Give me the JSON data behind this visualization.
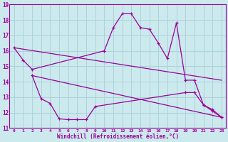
{
  "background_color": "#cce9ed",
  "grid_color": "#aad4d9",
  "line_color": "#990099",
  "spine_color": "#990099",
  "xlim": [
    -0.5,
    23.5
  ],
  "ylim": [
    11,
    19
  ],
  "xlabel": "Windchill (Refroidissement éolien,°C)",
  "yticks": [
    11,
    12,
    13,
    14,
    15,
    16,
    17,
    18,
    19
  ],
  "xticks": [
    0,
    1,
    2,
    3,
    4,
    5,
    6,
    7,
    8,
    9,
    10,
    11,
    12,
    13,
    14,
    15,
    16,
    17,
    18,
    19,
    20,
    21,
    22,
    23
  ],
  "xticklabels": [
    "0",
    "1",
    "2",
    "3",
    "4",
    "5",
    "6",
    "7",
    "8",
    "9",
    "10",
    "11",
    "12",
    "13",
    "14",
    "15",
    "16",
    "17",
    "18",
    "19",
    "20",
    "21",
    "22",
    "23"
  ],
  "series1_x": [
    0,
    1,
    2,
    10,
    11,
    12,
    13,
    14,
    15,
    16,
    17,
    18,
    19,
    20,
    21,
    22,
    23
  ],
  "series1_y": [
    16.2,
    15.4,
    14.8,
    16.0,
    17.5,
    18.4,
    18.4,
    17.5,
    17.4,
    16.5,
    15.5,
    17.8,
    14.1,
    14.1,
    12.5,
    12.2,
    11.7
  ],
  "series2_x": [
    0,
    23
  ],
  "series2_y": [
    16.2,
    14.1
  ],
  "series3_x": [
    2,
    3,
    4,
    5,
    6,
    7,
    8,
    9,
    19,
    20,
    21,
    22,
    23
  ],
  "series3_y": [
    14.4,
    12.9,
    12.6,
    11.6,
    11.55,
    11.55,
    11.55,
    12.4,
    13.3,
    13.3,
    12.5,
    12.1,
    11.7
  ],
  "series4_x": [
    2,
    23
  ],
  "series4_y": [
    14.4,
    11.7
  ]
}
